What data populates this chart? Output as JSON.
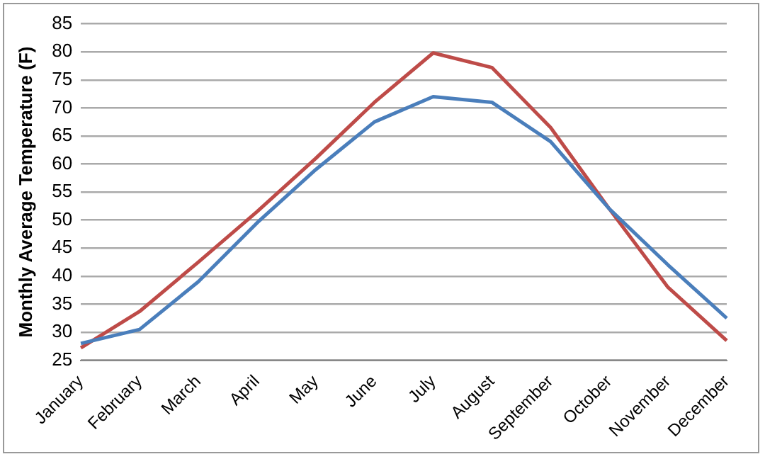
{
  "chart_data": {
    "type": "line",
    "ylabel": "Monthly Average Temperature (F)",
    "categories": [
      "January",
      "February",
      "March",
      "April",
      "May",
      "June",
      "July",
      "August",
      "September",
      "October",
      "November",
      "December"
    ],
    "series": [
      {
        "color": "#4a7ebb",
        "values": [
          28,
          30.5,
          39,
          49.5,
          59,
          67.5,
          72,
          71,
          64,
          52,
          42,
          32.5
        ]
      },
      {
        "color": "#be4b48",
        "values": [
          27.2,
          33.7,
          42.5,
          51.5,
          61,
          71,
          79.8,
          77.2,
          66.5,
          52,
          38,
          28.5
        ]
      }
    ],
    "ylim": [
      25,
      85
    ],
    "yticks": [
      25,
      30,
      35,
      40,
      45,
      50,
      55,
      60,
      65,
      70,
      75,
      80,
      85
    ],
    "grid": "y",
    "legend": false,
    "marker": "none",
    "line_style": "solid"
  }
}
